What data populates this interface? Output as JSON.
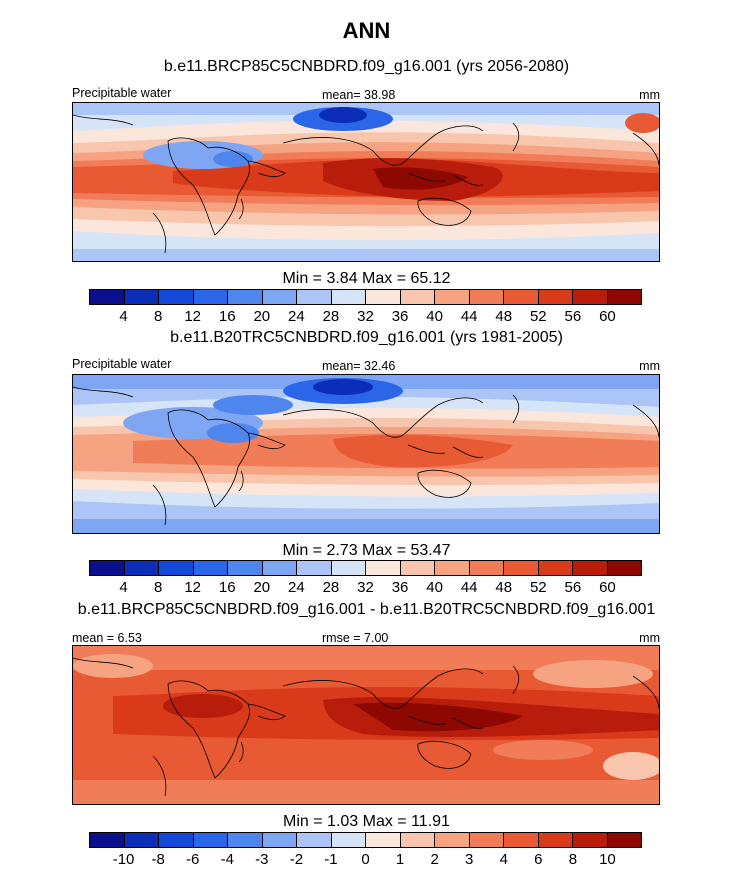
{
  "header": {
    "title": "ANN"
  },
  "colors": {
    "top_palette": [
      "#0a0f8c",
      "#0b2db8",
      "#1848d8",
      "#2c66e8",
      "#4f86ee",
      "#7ea6f2",
      "#abc6f6",
      "#d6e4f8",
      "#fbe6dc",
      "#f8c6ad",
      "#f5a381",
      "#f07d57",
      "#e85a34",
      "#d93a1a",
      "#b81d0c",
      "#8c0800"
    ],
    "diff_palette": [
      "#0a0f8c",
      "#0b2db8",
      "#1848d8",
      "#2c66e8",
      "#4f86ee",
      "#7ea6f2",
      "#abc6f6",
      "#d6e4f8",
      "#fbe6dc",
      "#f8c6ad",
      "#f5a381",
      "#f07d57",
      "#e85a34",
      "#d93a1a",
      "#b81d0c",
      "#8c0800"
    ]
  },
  "panels": [
    {
      "title": "b.e11.BRCP85C5CNBDRD.f09_g16.001 (yrs 2056-2080)",
      "left_label": "Precipitable water",
      "center_label": "mean=  38.98",
      "right_label": "mm",
      "min_max": "Min =   3.84 Max =  65.12",
      "ticks": [
        "4",
        "8",
        "12",
        "16",
        "20",
        "24",
        "28",
        "32",
        "36",
        "40",
        "44",
        "48",
        "52",
        "56",
        "60"
      ],
      "field": "future"
    },
    {
      "title": "b.e11.B20TRC5CNBDRD.f09_g16.001 (yrs 1981-2005)",
      "left_label": "Precipitable water",
      "center_label": "mean=  32.46",
      "right_label": "mm",
      "min_max": "Min =   2.73 Max =  53.47",
      "ticks": [
        "4",
        "8",
        "12",
        "16",
        "20",
        "24",
        "28",
        "32",
        "36",
        "40",
        "44",
        "48",
        "52",
        "56",
        "60"
      ],
      "field": "historical"
    },
    {
      "title": "b.e11.BRCP85C5CNBDRD.f09_g16.001 - b.e11.B20TRC5CNBDRD.f09_g16.001",
      "left_label": "mean =   6.53",
      "center_label": "rmse =   7.00",
      "right_label": "mm",
      "min_max": "Min =   1.03 Max =  11.91",
      "ticks": [
        "-10",
        "-8",
        "-6",
        "-4",
        "-3",
        "-2",
        "-1",
        "0",
        "1",
        "2",
        "3",
        "4",
        "6",
        "8",
        "10"
      ],
      "field": "difference"
    }
  ]
}
